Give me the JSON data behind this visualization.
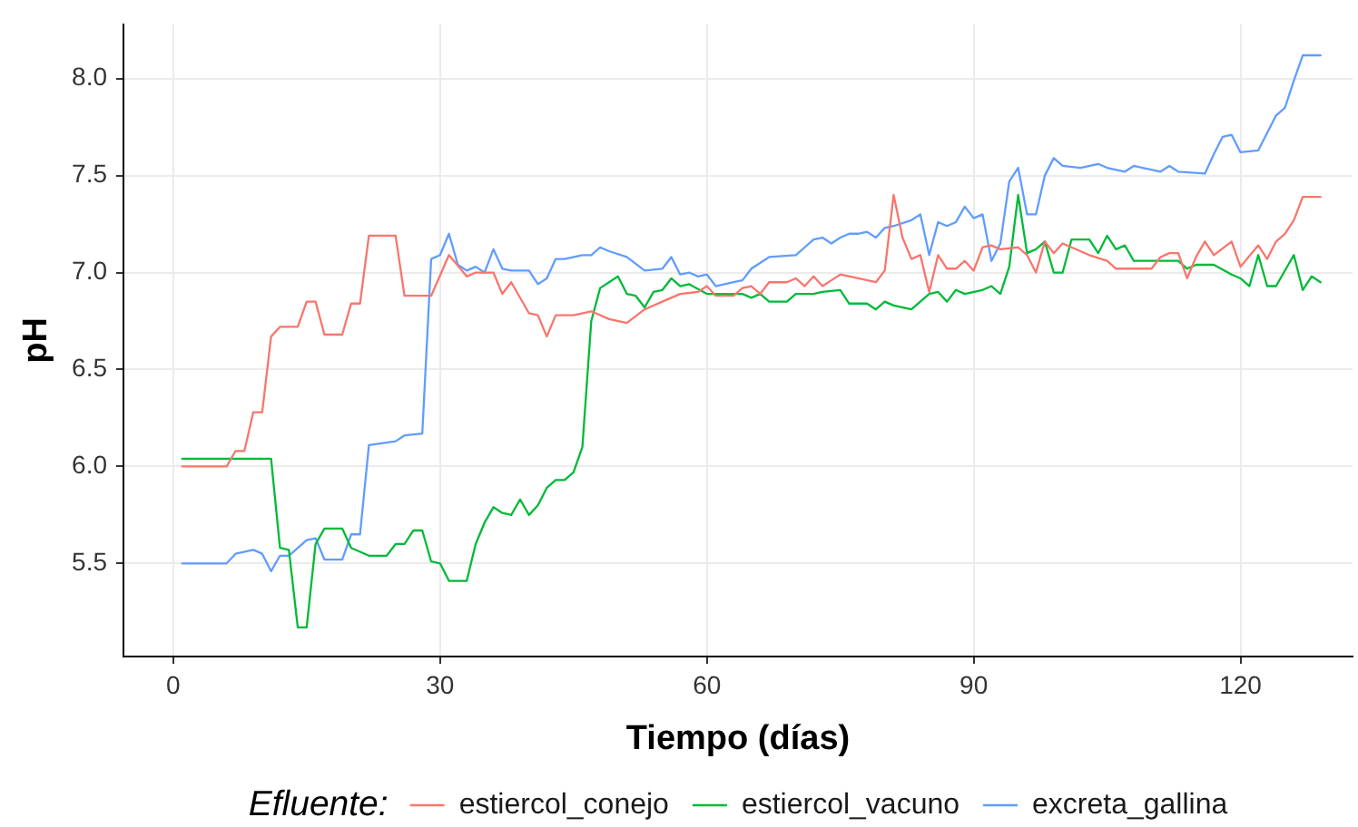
{
  "chart_data": {
    "type": "line",
    "xlabel": "Tiempo (días)",
    "ylabel": "pH",
    "legend_title": "Efluente:",
    "xlim": [
      -5.6,
      132.6
    ],
    "xticks": [
      0,
      30,
      60,
      90,
      120
    ],
    "ylim": [
      5.02,
      8.28
    ],
    "yticks": [
      5.5,
      {
        "value": 6,
        "label": "6.0"
      },
      6.5,
      {
        "value": 7,
        "label": "7.0"
      },
      7.5,
      {
        "value": 8,
        "label": "8.0"
      }
    ],
    "grid": true,
    "legend": "bottom",
    "marker": "none",
    "line_style": "solid",
    "series": [
      {
        "name": "estiercol_conejo",
        "color": "#f8766d",
        "x": [
          1,
          6,
          7,
          8,
          9,
          10,
          11,
          12,
          14,
          15,
          16,
          17,
          19,
          20,
          21,
          22,
          25,
          26,
          29,
          31,
          33,
          34,
          36,
          37,
          38,
          40,
          41,
          42,
          43,
          45,
          47,
          49,
          51,
          53,
          55,
          57,
          59,
          60,
          61,
          63,
          64,
          65,
          66,
          67,
          69,
          70,
          71,
          72,
          73,
          74,
          75,
          77,
          79,
          80,
          81,
          82,
          83,
          84,
          85,
          86,
          87,
          88,
          89,
          90,
          91,
          92,
          93,
          95,
          96,
          97,
          98,
          99,
          100,
          101,
          102,
          103,
          105,
          106,
          110,
          111,
          112,
          113,
          114,
          115,
          116,
          117,
          119,
          120,
          122,
          123,
          124,
          125,
          126,
          127,
          129
        ],
        "values": [
          6.0,
          6.0,
          6.08,
          6.08,
          6.28,
          6.28,
          6.67,
          6.72,
          6.72,
          6.85,
          6.85,
          6.68,
          6.68,
          6.84,
          6.84,
          7.19,
          7.19,
          6.88,
          6.88,
          7.09,
          6.98,
          7.0,
          7.0,
          6.89,
          6.95,
          6.79,
          6.78,
          6.67,
          6.78,
          6.78,
          6.8,
          6.76,
          6.74,
          6.81,
          6.85,
          6.89,
          6.9,
          6.93,
          6.88,
          6.88,
          6.92,
          6.93,
          6.89,
          6.95,
          6.95,
          6.97,
          6.93,
          6.98,
          6.93,
          6.96,
          6.99,
          6.97,
          6.95,
          7.01,
          7.4,
          7.18,
          7.07,
          7.09,
          6.9,
          7.09,
          7.02,
          7.02,
          7.06,
          7.01,
          7.13,
          7.14,
          7.12,
          7.13,
          7.09,
          7.0,
          7.16,
          7.1,
          7.15,
          7.13,
          7.11,
          7.09,
          7.06,
          7.02,
          7.02,
          7.08,
          7.1,
          7.1,
          6.97,
          7.08,
          7.16,
          7.09,
          7.16,
          7.03,
          7.14,
          7.07,
          7.16,
          7.2,
          7.27,
          7.39,
          7.39
        ]
      },
      {
        "name": "estiercol_vacuno",
        "color": "#00ba38",
        "x": [
          1,
          11,
          12,
          13,
          14,
          15,
          16,
          17,
          19,
          20,
          22,
          24,
          25,
          26,
          27,
          28,
          29,
          30,
          31,
          33,
          34,
          35,
          36,
          37,
          38,
          39,
          40,
          41,
          42,
          43,
          44,
          45,
          46,
          47,
          48,
          49,
          50,
          51,
          52,
          53,
          54,
          55,
          56,
          57,
          58,
          60,
          64,
          65,
          66,
          67,
          69,
          70,
          72,
          73,
          75,
          76,
          78,
          79,
          80,
          81,
          83,
          85,
          86,
          87,
          88,
          89,
          91,
          92,
          93,
          94,
          95,
          96,
          97,
          98,
          99,
          100,
          101,
          103,
          104,
          105,
          106,
          107,
          108,
          113,
          114,
          115,
          117,
          119,
          120,
          121,
          122,
          123,
          124,
          126,
          127,
          128,
          129
        ],
        "values": [
          6.04,
          6.04,
          5.58,
          5.57,
          5.17,
          5.17,
          5.6,
          5.68,
          5.68,
          5.58,
          5.54,
          5.54,
          5.6,
          5.6,
          5.67,
          5.67,
          5.51,
          5.5,
          5.41,
          5.41,
          5.6,
          5.71,
          5.79,
          5.76,
          5.75,
          5.83,
          5.75,
          5.8,
          5.89,
          5.93,
          5.93,
          5.97,
          6.1,
          6.75,
          6.92,
          6.95,
          6.98,
          6.89,
          6.88,
          6.82,
          6.9,
          6.91,
          6.97,
          6.93,
          6.94,
          6.89,
          6.89,
          6.87,
          6.89,
          6.85,
          6.85,
          6.89,
          6.89,
          6.9,
          6.91,
          6.84,
          6.84,
          6.81,
          6.85,
          6.83,
          6.81,
          6.89,
          6.9,
          6.85,
          6.91,
          6.89,
          6.91,
          6.93,
          6.89,
          7.03,
          7.4,
          7.1,
          7.12,
          7.16,
          7.0,
          7.0,
          7.17,
          7.17,
          7.1,
          7.19,
          7.12,
          7.14,
          7.06,
          7.06,
          7.02,
          7.04,
          7.04,
          6.99,
          6.97,
          6.93,
          7.09,
          6.93,
          6.93,
          7.09,
          6.91,
          6.98,
          6.95
        ]
      },
      {
        "name": "excreta_gallina",
        "color": "#619cff",
        "x": [
          1,
          6,
          7,
          9,
          10,
          11,
          12,
          13,
          15,
          16,
          17,
          19,
          20,
          21,
          22,
          25,
          26,
          28,
          29,
          30,
          31,
          32,
          33,
          34,
          35,
          36,
          37,
          38,
          40,
          41,
          42,
          43,
          44,
          46,
          47,
          48,
          49,
          51,
          53,
          55,
          56,
          57,
          58,
          59,
          60,
          61,
          63,
          64,
          65,
          67,
          70,
          71,
          72,
          73,
          74,
          75,
          76,
          77,
          78,
          79,
          80,
          81,
          83,
          84,
          85,
          86,
          87,
          88,
          89,
          90,
          91,
          92,
          93,
          94,
          95,
          96,
          97,
          98,
          99,
          100,
          102,
          104,
          105,
          107,
          108,
          109,
          111,
          112,
          113,
          116,
          117,
          118,
          119,
          120,
          122,
          123,
          124,
          125,
          126,
          127,
          129
        ],
        "values": [
          5.5,
          5.5,
          5.55,
          5.57,
          5.55,
          5.46,
          5.54,
          5.54,
          5.62,
          5.63,
          5.52,
          5.52,
          5.65,
          5.65,
          6.11,
          6.13,
          6.16,
          6.17,
          7.07,
          7.09,
          7.2,
          7.04,
          7.01,
          7.03,
          7.0,
          7.12,
          7.02,
          7.01,
          7.01,
          6.94,
          6.97,
          7.07,
          7.07,
          7.09,
          7.09,
          7.13,
          7.11,
          7.08,
          7.01,
          7.02,
          7.08,
          6.99,
          7.0,
          6.98,
          6.99,
          6.93,
          6.95,
          6.96,
          7.02,
          7.08,
          7.09,
          7.13,
          7.17,
          7.18,
          7.15,
          7.18,
          7.2,
          7.2,
          7.21,
          7.18,
          7.23,
          7.24,
          7.27,
          7.3,
          7.09,
          7.26,
          7.24,
          7.26,
          7.34,
          7.28,
          7.3,
          7.06,
          7.15,
          7.47,
          7.54,
          7.3,
          7.3,
          7.5,
          7.59,
          7.55,
          7.54,
          7.56,
          7.54,
          7.52,
          7.55,
          7.54,
          7.52,
          7.55,
          7.52,
          7.51,
          7.61,
          7.7,
          7.71,
          7.62,
          7.63,
          7.72,
          7.81,
          7.85,
          7.99,
          8.12,
          8.12
        ]
      }
    ]
  }
}
